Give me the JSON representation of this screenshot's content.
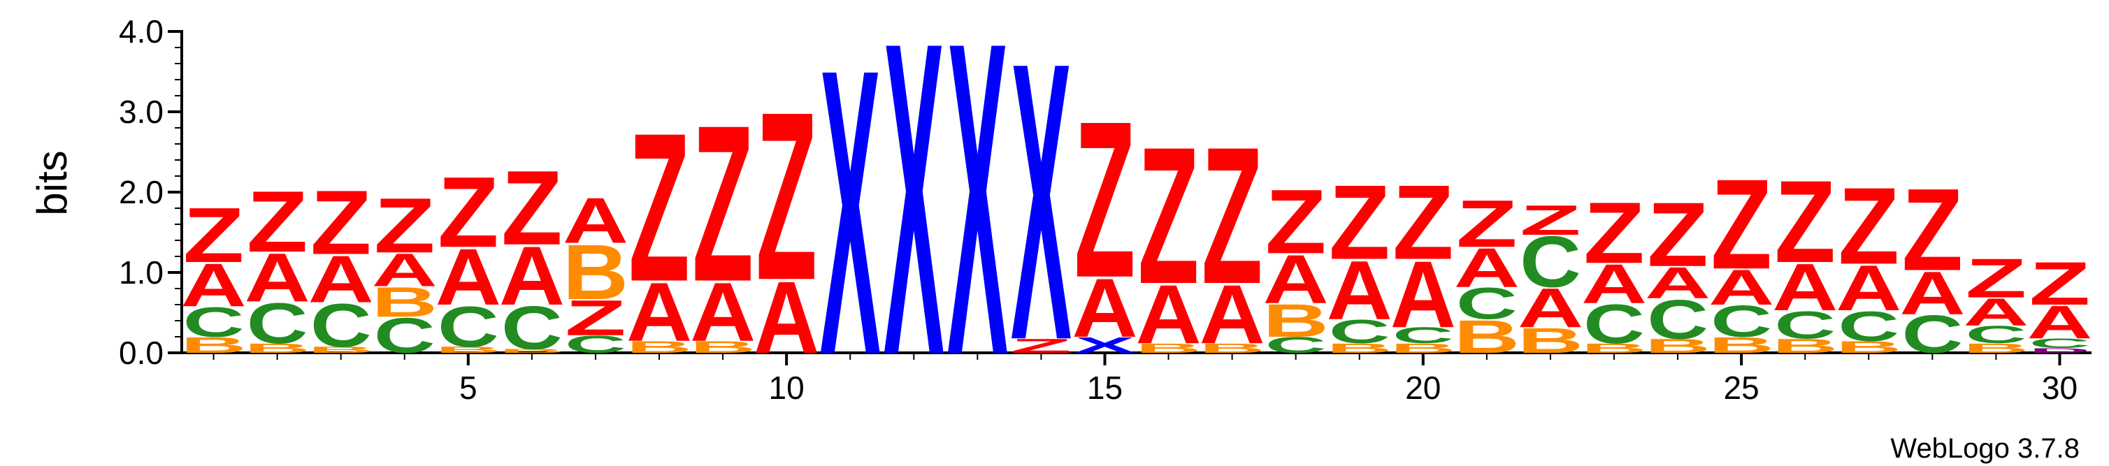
{
  "chart_data": {
    "type": "sequence_logo",
    "ylabel": "bits",
    "ylim": [
      0,
      4.0
    ],
    "yticks": [
      "0.0",
      "1.0",
      "2.0",
      "3.0",
      "4.0"
    ],
    "xticks": [
      "5",
      "10",
      "15",
      "20",
      "25",
      "30"
    ],
    "credit": "WebLogo 3.7.8",
    "colors": {
      "Z": "#ff0000",
      "A": "#ff0000",
      "X": "#0000ff",
      "C": "#228b22",
      "B": "#ff8c00",
      "D": "#800080"
    },
    "positions": [
      {
        "pos": 1,
        "stack": [
          [
            "B",
            0.2
          ],
          [
            "C",
            0.38
          ],
          [
            "A",
            0.55
          ],
          [
            "Z",
            0.7
          ]
        ]
      },
      {
        "pos": 2,
        "stack": [
          [
            "B",
            0.12
          ],
          [
            "C",
            0.52
          ],
          [
            "A",
            0.62
          ],
          [
            "Z",
            0.78
          ]
        ]
      },
      {
        "pos": 3,
        "stack": [
          [
            "B",
            0.08
          ],
          [
            "C",
            0.55
          ],
          [
            "A",
            0.6
          ],
          [
            "Z",
            0.82
          ]
        ]
      },
      {
        "pos": 4,
        "stack": [
          [
            "C",
            0.45
          ],
          [
            "B",
            0.38
          ],
          [
            "A",
            0.42
          ],
          [
            "Z",
            0.7
          ]
        ]
      },
      {
        "pos": 5,
        "stack": [
          [
            "B",
            0.08
          ],
          [
            "C",
            0.52
          ],
          [
            "A",
            0.72
          ],
          [
            "Z",
            0.9
          ]
        ]
      },
      {
        "pos": 6,
        "stack": [
          [
            "B",
            0.05
          ],
          [
            "C",
            0.55
          ],
          [
            "A",
            0.75
          ],
          [
            "Z",
            0.95
          ]
        ]
      },
      {
        "pos": 7,
        "stack": [
          [
            "C",
            0.22
          ],
          [
            "Z",
            0.45
          ],
          [
            "B",
            0.7
          ],
          [
            "A",
            0.58
          ]
        ]
      },
      {
        "pos": 8,
        "stack": [
          [
            "B",
            0.15
          ],
          [
            "A",
            0.75
          ],
          [
            "Z",
            1.9
          ]
        ]
      },
      {
        "pos": 9,
        "stack": [
          [
            "B",
            0.15
          ],
          [
            "A",
            0.75
          ],
          [
            "Z",
            2.0
          ]
        ]
      },
      {
        "pos": 10,
        "stack": [
          [
            "A",
            0.92
          ],
          [
            "Z",
            2.15
          ]
        ]
      },
      {
        "pos": 11,
        "stack": [
          [
            "X",
            3.65
          ]
        ]
      },
      {
        "pos": 12,
        "stack": [
          [
            "X",
            4.0
          ]
        ]
      },
      {
        "pos": 13,
        "stack": [
          [
            "X",
            4.0
          ]
        ]
      },
      {
        "pos": 14,
        "stack": [
          [
            "Z",
            0.18
          ],
          [
            "X",
            3.55
          ]
        ]
      },
      {
        "pos": 15,
        "stack": [
          [
            "X",
            0.2
          ],
          [
            "A",
            0.75
          ],
          [
            "Z",
            2.0
          ]
        ]
      },
      {
        "pos": 16,
        "stack": [
          [
            "B",
            0.12
          ],
          [
            "A",
            0.75
          ],
          [
            "Z",
            1.75
          ]
        ]
      },
      {
        "pos": 17,
        "stack": [
          [
            "B",
            0.12
          ],
          [
            "A",
            0.75
          ],
          [
            "Z",
            1.75
          ]
        ]
      },
      {
        "pos": 18,
        "stack": [
          [
            "C",
            0.2
          ],
          [
            "B",
            0.42
          ],
          [
            "A",
            0.62
          ],
          [
            "Z",
            0.82
          ]
        ]
      },
      {
        "pos": 19,
        "stack": [
          [
            "B",
            0.12
          ],
          [
            "C",
            0.3
          ],
          [
            "A",
            0.75
          ],
          [
            "Z",
            0.95
          ]
        ]
      },
      {
        "pos": 20,
        "stack": [
          [
            "B",
            0.12
          ],
          [
            "C",
            0.2
          ],
          [
            "A",
            0.85
          ],
          [
            "Z",
            0.95
          ]
        ]
      },
      {
        "pos": 21,
        "stack": [
          [
            "B",
            0.42
          ],
          [
            "C",
            0.4
          ],
          [
            "A",
            0.5
          ],
          [
            "Z",
            0.6
          ]
        ]
      },
      {
        "pos": 22,
        "stack": [
          [
            "B",
            0.32
          ],
          [
            "A",
            0.5
          ],
          [
            "C",
            0.65
          ],
          [
            "Z",
            0.38
          ]
        ]
      },
      {
        "pos": 23,
        "stack": [
          [
            "B",
            0.12
          ],
          [
            "C",
            0.5
          ],
          [
            "A",
            0.5
          ],
          [
            "Z",
            0.78
          ]
        ]
      },
      {
        "pos": 24,
        "stack": [
          [
            "B",
            0.18
          ],
          [
            "C",
            0.5
          ],
          [
            "A",
            0.4
          ],
          [
            "Z",
            0.82
          ]
        ]
      },
      {
        "pos": 25,
        "stack": [
          [
            "B",
            0.2
          ],
          [
            "C",
            0.4
          ],
          [
            "A",
            0.45
          ],
          [
            "Z",
            1.15
          ]
        ]
      },
      {
        "pos": 26,
        "stack": [
          [
            "B",
            0.18
          ],
          [
            "C",
            0.35
          ],
          [
            "A",
            0.6
          ],
          [
            "Z",
            1.05
          ]
        ]
      },
      {
        "pos": 27,
        "stack": [
          [
            "B",
            0.15
          ],
          [
            "C",
            0.38
          ],
          [
            "A",
            0.58
          ],
          [
            "Z",
            0.98
          ]
        ]
      },
      {
        "pos": 28,
        "stack": [
          [
            "C",
            0.48
          ],
          [
            "A",
            0.55
          ],
          [
            "Z",
            1.05
          ]
        ]
      },
      {
        "pos": 29,
        "stack": [
          [
            "B",
            0.12
          ],
          [
            "C",
            0.22
          ],
          [
            "A",
            0.35
          ],
          [
            "Z",
            0.5
          ]
        ]
      },
      {
        "pos": 30,
        "stack": [
          [
            "D",
            0.06
          ],
          [
            "C",
            0.12
          ],
          [
            "A",
            0.42
          ],
          [
            "Z",
            0.55
          ]
        ]
      }
    ]
  }
}
